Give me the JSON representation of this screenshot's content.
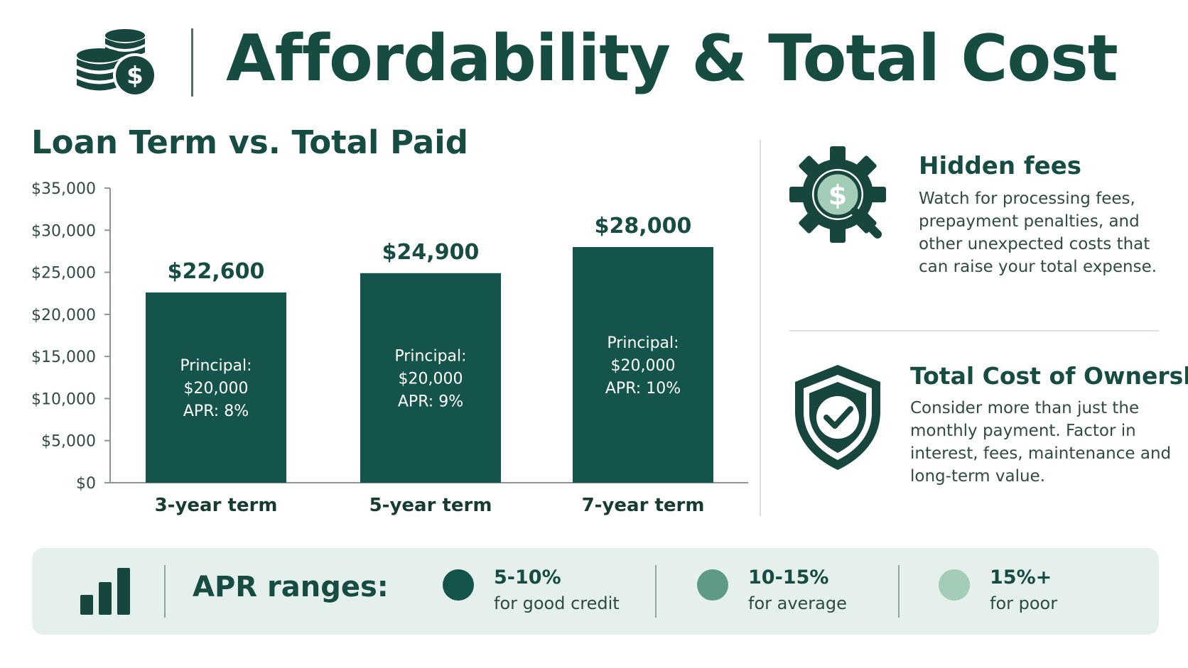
{
  "header": {
    "title": "Affordability & Total Cost",
    "icon": "coins-dollar-icon"
  },
  "chart_data": {
    "type": "bar",
    "title": "Loan Term vs. Total Paid",
    "categories": [
      "3-year term",
      "5-year term",
      "7-year term"
    ],
    "values": [
      22600,
      24900,
      28000
    ],
    "value_labels": [
      "$22,600",
      "$24,900",
      "$28,000"
    ],
    "bar_notes": [
      [
        "Principal:",
        "$20,000",
        "APR: 8%"
      ],
      [
        "Principal:",
        "$20,000",
        "APR: 9%"
      ],
      [
        "Principal:",
        "$20,000",
        "APR: 10%"
      ]
    ],
    "ylim": [
      0,
      35000
    ],
    "yticks": [
      0,
      5000,
      10000,
      15000,
      20000,
      25000,
      30000,
      35000
    ],
    "ytick_labels": [
      "$0",
      "$5,000",
      "$10,000",
      "$15,000",
      "$20,000",
      "$25,000",
      "$30,000",
      "$35,000"
    ],
    "xlabel": "",
    "ylabel": "",
    "grid": false,
    "bar_color": "#14544a"
  },
  "side": {
    "fees": {
      "title": "Hidden fees",
      "text": "Watch for processing fees, prepayment penalties, and other unexpected costs that can raise your total expense.",
      "icon": "gear-dollar-magnifier-icon"
    },
    "tco": {
      "title": "Total Cost of Ownership",
      "text": "Consider more than just the monthly payment. Factor in interest, fees, maintenance and long-term value.",
      "icon": "shield-check-icon"
    }
  },
  "apr": {
    "label": "APR ranges:",
    "icon": "bar-chart-icon",
    "items": [
      {
        "range": "5-10%",
        "desc": "for good credit",
        "color": "#14544a"
      },
      {
        "range": "10-15%",
        "desc": "for average",
        "color": "#5f9a85"
      },
      {
        "range": "15%+",
        "desc": "for poor",
        "color": "#a3cdb7"
      }
    ]
  },
  "colors": {
    "primary": "#164c41",
    "bar": "#14544a",
    "panel_bg": "#e5f0ec"
  }
}
